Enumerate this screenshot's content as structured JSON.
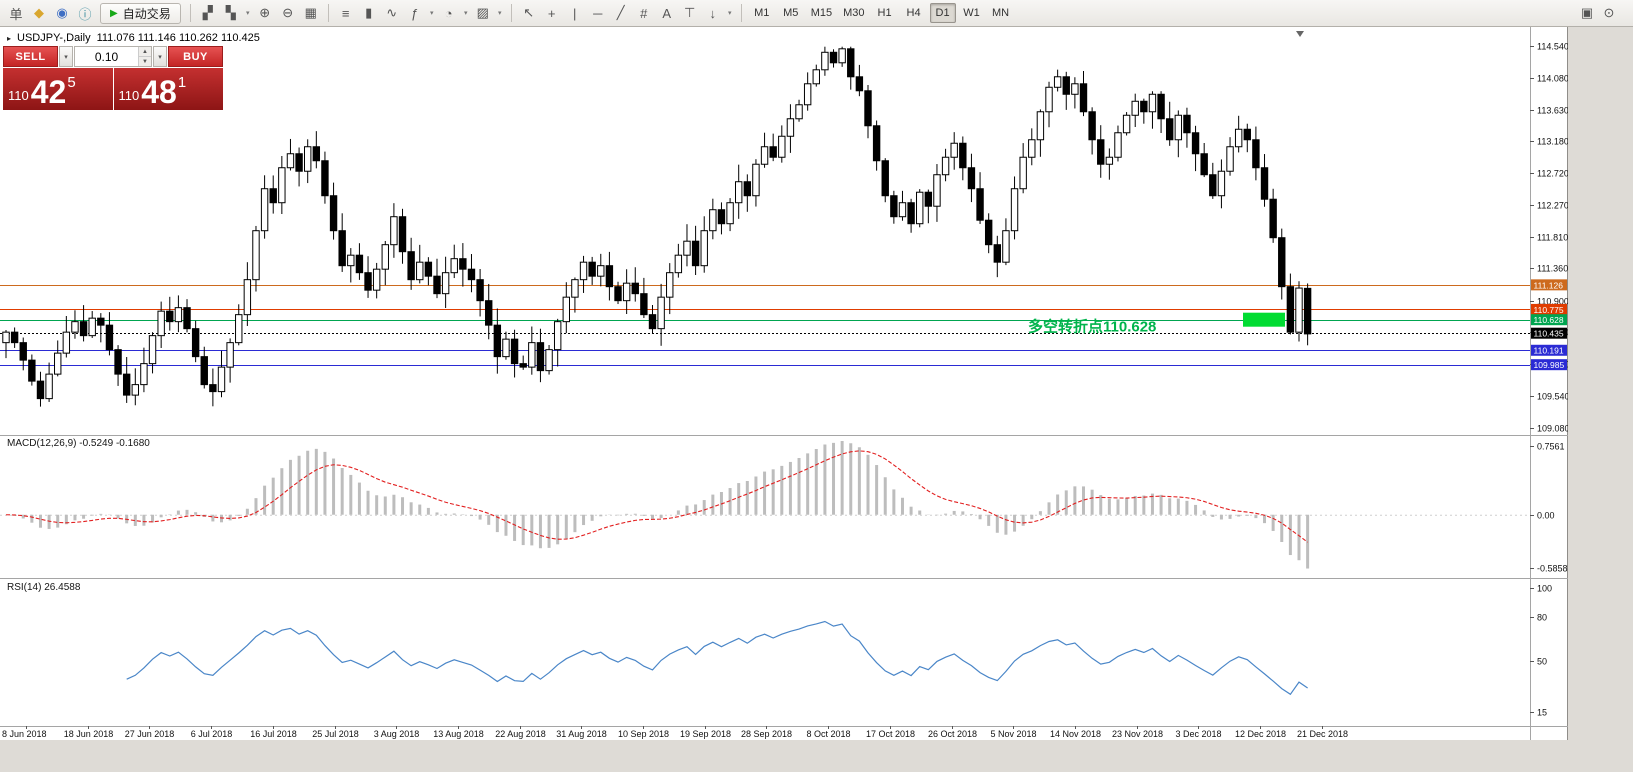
{
  "toolbar": {
    "menu_label": "单",
    "left_icons": [
      {
        "name": "new-order-icon",
        "glyph": "◆",
        "color": "#d9a62e"
      },
      {
        "name": "market-watch-icon",
        "glyph": "◉",
        "color": "#3f6fc4"
      },
      {
        "name": "data-window-icon",
        "glyph": "ⓘ",
        "color": "#3f8fa0"
      }
    ],
    "autotrading": {
      "label": "自动交易",
      "icon": "▶"
    },
    "chart_icons": [
      {
        "name": "new-chart-icon",
        "glyph": "▞",
        "dropdown": false
      },
      {
        "name": "profiles-icon",
        "glyph": "▚",
        "dropdown": true
      }
    ],
    "zoom_icons": [
      {
        "name": "zoom-in-icon",
        "glyph": "⊕"
      },
      {
        "name": "zoom-out-icon",
        "glyph": "⊖"
      },
      {
        "name": "tile-windows-icon",
        "glyph": "▦"
      }
    ],
    "type_icons": [
      {
        "name": "bar-chart-type-icon",
        "glyph": "≡"
      },
      {
        "name": "candlestick-type-icon",
        "glyph": "▮"
      },
      {
        "name": "line-chart-type-icon",
        "glyph": "∿"
      },
      {
        "name": "indicators-icon",
        "glyph": "ƒ",
        "dropdown": true
      },
      {
        "name": "periods-icon",
        "glyph": "◔",
        "dropdown": true
      },
      {
        "name": "templates-icon",
        "glyph": "▨",
        "dropdown": true
      }
    ],
    "draw_icons": [
      {
        "name": "cursor-icon",
        "glyph": "↖"
      },
      {
        "name": "crosshair-icon",
        "glyph": "+"
      },
      {
        "name": "vertical-line-icon",
        "glyph": "|"
      },
      {
        "name": "horizontal-line-icon",
        "glyph": "─"
      },
      {
        "name": "trendline-icon",
        "glyph": "╱"
      },
      {
        "name": "fibonacci-icon",
        "glyph": "#"
      },
      {
        "name": "text-icon",
        "glyph": "A"
      },
      {
        "name": "label-icon",
        "glyph": "⊤"
      },
      {
        "name": "arrows-icon",
        "glyph": "↓",
        "dropdown": true
      }
    ],
    "timeframes": [
      "M1",
      "M5",
      "M15",
      "M30",
      "H1",
      "H4",
      "D1",
      "W1",
      "MN"
    ],
    "active_timeframe": "D1",
    "right_icons": [
      {
        "name": "window-icon",
        "glyph": "▣"
      },
      {
        "name": "search-icon",
        "glyph": "⊙"
      }
    ]
  },
  "chart_header": {
    "collapse_icon": "▸",
    "symbol_period": "USDJPY-,Daily",
    "ohlc": "111.076 111.146 110.262 110.425"
  },
  "trade_panel": {
    "sell_label": "SELL",
    "buy_label": "BUY",
    "volume": "0.10",
    "bid": {
      "main": "110",
      "big": "42",
      "sup": "5"
    },
    "ask": {
      "main": "110",
      "big": "48",
      "sup": "1"
    }
  },
  "annotation": {
    "text": "多空转折点110.628",
    "color": "#00b44c"
  },
  "main_axis_labels": [
    "114.540",
    "114.080",
    "113.630",
    "113.180",
    "112.720",
    "112.270",
    "111.810",
    "111.360",
    "110.900",
    "110.450",
    "109.990",
    "109.540",
    "109.080"
  ],
  "levels": [
    {
      "price": 111.126,
      "label": "111.126",
      "color": "#cd6a1e",
      "style": "solid"
    },
    {
      "price": 110.775,
      "label": "110.775",
      "color": "#e03c00",
      "style": "solid"
    },
    {
      "price": 110.628,
      "label": "110.628",
      "color": "#00a550",
      "style": "solid"
    },
    {
      "price": 110.435,
      "label": "110.435",
      "color": "#000000",
      "style": "dot"
    },
    {
      "price": 110.191,
      "label": "110.191",
      "color": "#2b2bd4",
      "style": "solid"
    },
    {
      "price": 109.985,
      "label": "109.985",
      "color": "#2b2bd4",
      "style": "solid"
    }
  ],
  "macd_panel": {
    "label": "MACD(12,26,9) -0.5249 -0.1680",
    "axis_labels": [
      "0.7561",
      "0.00",
      "-0.5858"
    ],
    "axis_values": [
      0.7561,
      0,
      -0.5858
    ]
  },
  "rsi_panel": {
    "label": "RSI(14) 26.4588",
    "axis_labels": [
      "100",
      "80",
      "50",
      "15"
    ],
    "axis_values": [
      100,
      80,
      50,
      15
    ]
  },
  "date_axis": [
    "8 Jun 2018",
    "18 Jun 2018",
    "27 Jun 2018",
    "6 Jul 2018",
    "16 Jul 2018",
    "25 Jul 2018",
    "3 Aug 2018",
    "13 Aug 2018",
    "22 Aug 2018",
    "31 Aug 2018",
    "10 Sep 2018",
    "19 Sep 2018",
    "28 Sep 2018",
    "8 Oct 2018",
    "17 Oct 2018",
    "26 Oct 2018",
    "5 Nov 2018",
    "14 Nov 2018",
    "23 Nov 2018",
    "3 Dec 2018",
    "12 Dec 2018",
    "21 Dec 2018"
  ],
  "chart_data": {
    "type": "candlestick",
    "symbol": "USDJPY",
    "period": "Daily",
    "price_range": [
      109.08,
      114.54
    ],
    "closes": [
      110.45,
      110.3,
      110.05,
      109.75,
      109.5,
      109.85,
      110.15,
      110.45,
      110.6,
      110.4,
      110.65,
      110.55,
      110.2,
      109.85,
      109.55,
      109.7,
      110.0,
      110.4,
      110.75,
      110.6,
      110.8,
      110.5,
      110.1,
      109.7,
      109.6,
      109.95,
      110.3,
      110.7,
      111.2,
      111.9,
      112.5,
      112.3,
      112.8,
      113.0,
      112.75,
      113.1,
      112.9,
      112.4,
      111.9,
      111.4,
      111.55,
      111.3,
      111.05,
      111.35,
      111.7,
      112.1,
      111.6,
      111.2,
      111.45,
      111.25,
      111.0,
      111.3,
      111.5,
      111.35,
      111.2,
      110.9,
      110.55,
      110.1,
      110.35,
      110.0,
      109.95,
      110.3,
      109.9,
      110.2,
      110.6,
      110.95,
      111.2,
      111.45,
      111.25,
      111.4,
      111.1,
      110.9,
      111.15,
      111.0,
      110.7,
      110.5,
      110.95,
      111.3,
      111.55,
      111.75,
      111.4,
      111.9,
      112.2,
      112.0,
      112.3,
      112.6,
      112.4,
      112.85,
      113.1,
      112.95,
      113.25,
      113.5,
      113.7,
      114.0,
      114.2,
      114.45,
      114.3,
      114.5,
      114.1,
      113.9,
      113.4,
      112.9,
      112.4,
      112.1,
      112.3,
      112.0,
      112.45,
      112.25,
      112.7,
      112.95,
      113.15,
      112.8,
      112.5,
      112.05,
      111.7,
      111.45,
      111.9,
      112.5,
      112.95,
      113.2,
      113.6,
      113.95,
      114.1,
      113.85,
      114.0,
      113.6,
      113.2,
      112.85,
      112.95,
      113.3,
      113.55,
      113.75,
      113.6,
      113.85,
      113.5,
      113.2,
      113.55,
      113.3,
      113.0,
      112.7,
      112.4,
      112.75,
      113.1,
      113.35,
      113.2,
      112.8,
      112.35,
      111.8,
      111.1,
      110.45,
      111.08,
      110.425
    ],
    "last_bar": {
      "open": 111.076,
      "high": 111.146,
      "low": 110.262,
      "close": 110.425
    },
    "indicators": {
      "macd": {
        "fast": 12,
        "slow": 26,
        "signal": 9,
        "current": [
          -0.5249,
          -0.168
        ]
      },
      "rsi": {
        "period": 14,
        "current": 26.4588
      }
    }
  }
}
